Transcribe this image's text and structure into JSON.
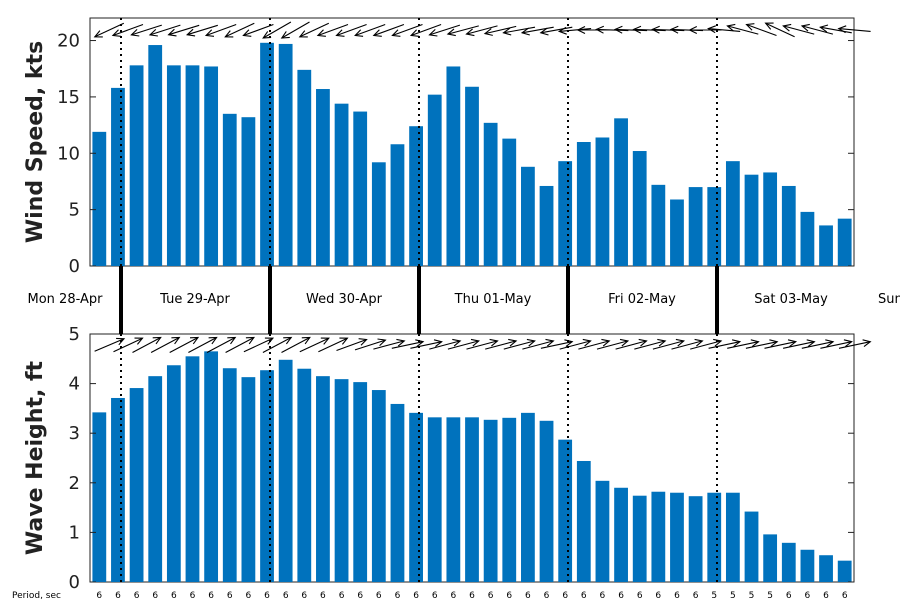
{
  "chart_data": [
    {
      "type": "bar",
      "ylabel": "Wind Speed, kts",
      "ylim": [
        0,
        22
      ],
      "yticks": [
        0,
        5,
        10,
        15,
        20
      ],
      "bar_color": "#0072BD",
      "values": [
        11.9,
        15.8,
        17.8,
        19.6,
        17.8,
        17.8,
        17.7,
        13.5,
        13.2,
        19.8,
        19.7,
        17.4,
        15.7,
        14.4,
        13.7,
        9.2,
        10.8,
        12.4,
        15.2,
        17.7,
        15.9,
        12.7,
        11.3,
        8.8,
        7.1,
        9.3,
        11.0,
        11.4,
        13.1,
        10.2,
        7.2,
        5.9,
        7.0,
        7.0,
        9.3,
        8.1,
        8.3,
        7.1,
        4.8,
        3.6,
        4.2
      ],
      "direction_arrows": "wind direction arrows along top of panel"
    },
    {
      "type": "bar",
      "ylabel": "Wave Height, ft",
      "ylim": [
        0,
        5
      ],
      "yticks": [
        0,
        1,
        2,
        3,
        4,
        5
      ],
      "bar_color": "#0072BD",
      "values": [
        3.42,
        3.71,
        3.91,
        4.15,
        4.37,
        4.55,
        4.65,
        4.31,
        4.13,
        4.27,
        4.48,
        4.3,
        4.15,
        4.09,
        4.03,
        3.87,
        3.59,
        3.41,
        3.32,
        3.32,
        3.32,
        3.27,
        3.31,
        3.41,
        3.25,
        2.87,
        2.44,
        2.04,
        1.9,
        1.74,
        1.82,
        1.8,
        1.73,
        1.8,
        1.8,
        1.42,
        0.96,
        0.79,
        0.65,
        0.54,
        0.43
      ],
      "period_label": "Period, sec",
      "periods": [
        "6",
        "6",
        "6",
        "6",
        "6",
        "6",
        "6",
        "6",
        "6",
        "6",
        "6",
        "6",
        "6",
        "6",
        "6",
        "6",
        "6",
        "6",
        "6",
        "6",
        "6",
        "6",
        "6",
        "6",
        "6",
        "6",
        "6",
        "6",
        "6",
        "6",
        "6",
        "6",
        "6",
        "5",
        "5",
        "5",
        "5",
        "6",
        "6",
        "6",
        "6"
      ]
    }
  ],
  "days": [
    "Mon 28-Apr",
    "Tue 29-Apr",
    "Wed 30-Apr",
    "Thu 01-May",
    "Fri 02-May",
    "Sat 03-May",
    "Sun"
  ],
  "wind_arrow_angles": [
    205,
    200,
    198,
    198,
    197,
    197,
    200,
    205,
    200,
    210,
    210,
    205,
    200,
    200,
    200,
    200,
    200,
    200,
    198,
    195,
    195,
    193,
    190,
    190,
    190,
    185,
    180,
    178,
    178,
    178,
    178,
    178,
    180,
    175,
    165,
    160,
    155,
    165,
    165,
    170,
    175
  ],
  "wave_arrow_angles": [
    23,
    25,
    28,
    28,
    28,
    28,
    28,
    28,
    25,
    28,
    28,
    25,
    25,
    20,
    18,
    15,
    12,
    12,
    15,
    15,
    15,
    15,
    15,
    15,
    12,
    15,
    15,
    15,
    15,
    15,
    15,
    15,
    15,
    12,
    12,
    12,
    12,
    12,
    12,
    12,
    12
  ]
}
